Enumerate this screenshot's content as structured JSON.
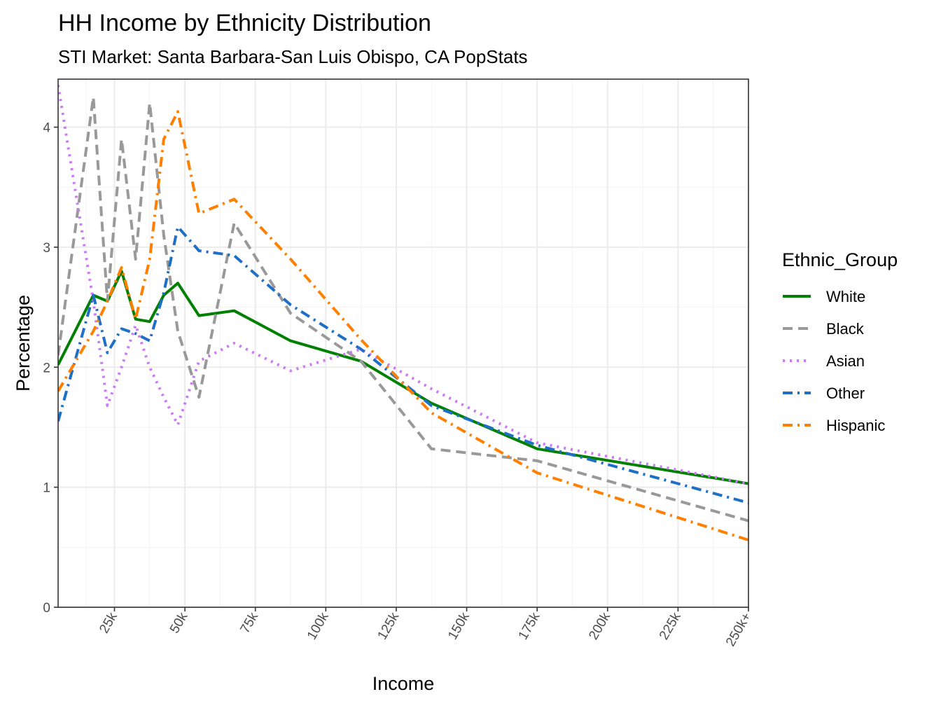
{
  "chart_data": {
    "type": "line",
    "title": "HH Income by Ethnicity Distribution",
    "subtitle": "STI Market: Santa Barbara-San Luis Obispo, CA PopStats",
    "xlabel": "Income",
    "ylabel": "Percentage",
    "xlim": [
      5,
      250
    ],
    "ylim": [
      0,
      4.4
    ],
    "x_ticks": [
      {
        "value": 25,
        "label": "25k"
      },
      {
        "value": 50,
        "label": "50k"
      },
      {
        "value": 75,
        "label": "75k"
      },
      {
        "value": 100,
        "label": "100k"
      },
      {
        "value": 125,
        "label": "125k"
      },
      {
        "value": 150,
        "label": "150k"
      },
      {
        "value": 175,
        "label": "175k"
      },
      {
        "value": 200,
        "label": "200k"
      },
      {
        "value": 225,
        "label": "225k"
      },
      {
        "value": 250,
        "label": "250k+"
      }
    ],
    "y_ticks": [
      0,
      1,
      2,
      3,
      4
    ],
    "legend_title": "Ethnic_Group",
    "legend_position": "right",
    "x": [
      5,
      17.5,
      22.5,
      27.5,
      32.5,
      37.5,
      42.5,
      47.5,
      55,
      67.5,
      87.5,
      112.5,
      137.5,
      175,
      250
    ],
    "series": [
      {
        "name": "White",
        "color": "#008000",
        "dash": "solid",
        "values": [
          2.02,
          2.6,
          2.55,
          2.8,
          2.4,
          2.38,
          2.6,
          2.7,
          2.43,
          2.47,
          2.22,
          2.05,
          1.7,
          1.32,
          1.03
        ]
      },
      {
        "name": "Black",
        "color": "#999999",
        "dash": "dashed",
        "values": [
          2.1,
          4.25,
          2.55,
          3.9,
          2.9,
          4.2,
          3.1,
          2.3,
          1.75,
          3.2,
          2.45,
          2.05,
          1.32,
          1.22,
          0.72
        ]
      },
      {
        "name": "Asian",
        "color": "#cc79f7",
        "dash": "dotted",
        "values": [
          4.35,
          2.55,
          1.68,
          2.0,
          2.35,
          2.0,
          1.75,
          1.52,
          2.05,
          2.2,
          1.97,
          2.15,
          1.82,
          1.37,
          1.03
        ]
      },
      {
        "name": "Other",
        "color": "#1f6fc6",
        "dash": "dashdot",
        "values": [
          1.55,
          2.6,
          2.12,
          2.32,
          2.28,
          2.22,
          2.62,
          3.17,
          2.97,
          2.93,
          2.52,
          2.15,
          1.68,
          1.35,
          0.87
        ]
      },
      {
        "name": "Hispanic",
        "color": "#ff8000",
        "dash": "dashdot",
        "values": [
          1.8,
          2.3,
          2.55,
          2.83,
          2.4,
          2.9,
          3.9,
          4.13,
          3.28,
          3.4,
          2.9,
          2.23,
          1.62,
          1.12,
          0.56
        ]
      }
    ]
  }
}
